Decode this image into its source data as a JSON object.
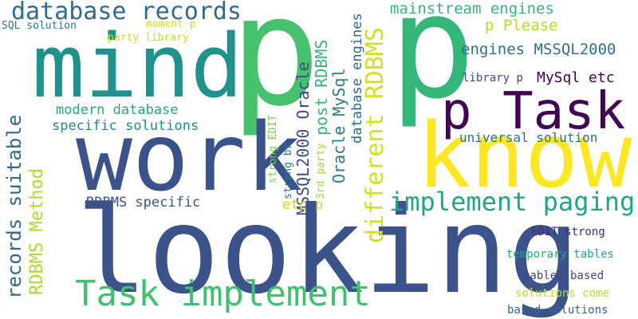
{
  "words": [
    {
      "text": "looking",
      "color": "#3b528b"
    },
    {
      "text": "p",
      "color": "#48c16e"
    },
    {
      "text": "p",
      "color": "#35b779"
    },
    {
      "text": "mind",
      "color": "#21918c"
    },
    {
      "text": "work",
      "color": "#3b528b"
    },
    {
      "text": "know",
      "color": "#fde725"
    },
    {
      "text": "p Task",
      "color": "#440154"
    },
    {
      "text": "Task implement",
      "color": "#43bf71"
    },
    {
      "text": "database records",
      "color": "#2f6c8e"
    },
    {
      "text": "implement paging",
      "color": "#21a685"
    },
    {
      "text": "records suitable",
      "color": "#31688e"
    },
    {
      "text": "RDBMS Method",
      "color": "#addc30"
    },
    {
      "text": "different RDBMS",
      "color": "#d2e21b"
    },
    {
      "text": "Oracle MySql",
      "color": "#287c8e"
    },
    {
      "text": "post RDBMS",
      "color": "#35b779"
    },
    {
      "text": "MSSQL2000 Oracle",
      "color": "#3e4a89"
    },
    {
      "text": "database engines",
      "color": "#31688e"
    },
    {
      "text": "mainstream engines",
      "color": "#35b779"
    },
    {
      "text": "engines MSSQL2000",
      "color": "#2c728e"
    },
    {
      "text": "p Please",
      "color": "#b5de2b"
    },
    {
      "text": "MySql etc",
      "color": "#440154"
    },
    {
      "text": "library p",
      "color": "#3e4a89"
    },
    {
      "text": "universal solution",
      "color": "#2c728e"
    },
    {
      "text": "modern database",
      "color": "#22a884"
    },
    {
      "text": "specific solutions",
      "color": "#23898e"
    },
    {
      "text": "RDBMS specific",
      "color": "#3b528b"
    },
    {
      "text": "etc p",
      "color": "#c2df23"
    },
    {
      "text": "EDIT strong",
      "color": "#482878"
    },
    {
      "text": "temporary tables",
      "color": "#22a884"
    },
    {
      "text": "tables based",
      "color": "#414487"
    },
    {
      "text": "solutions come",
      "color": "#b5de2b"
    },
    {
      "text": "based solutions",
      "color": "#31688e"
    },
    {
      "text": "SQL solution",
      "color": "#2a788e"
    },
    {
      "text": "party library",
      "color": "#c8e020"
    },
    {
      "text": "moment p",
      "color": "#cae11f"
    },
    {
      "text": "strong EDIT",
      "color": "#7ad151"
    },
    {
      "text": "strong br",
      "color": "#2a788e"
    },
    {
      "text": "3rd party",
      "color": "#9fda3a"
    }
  ]
}
